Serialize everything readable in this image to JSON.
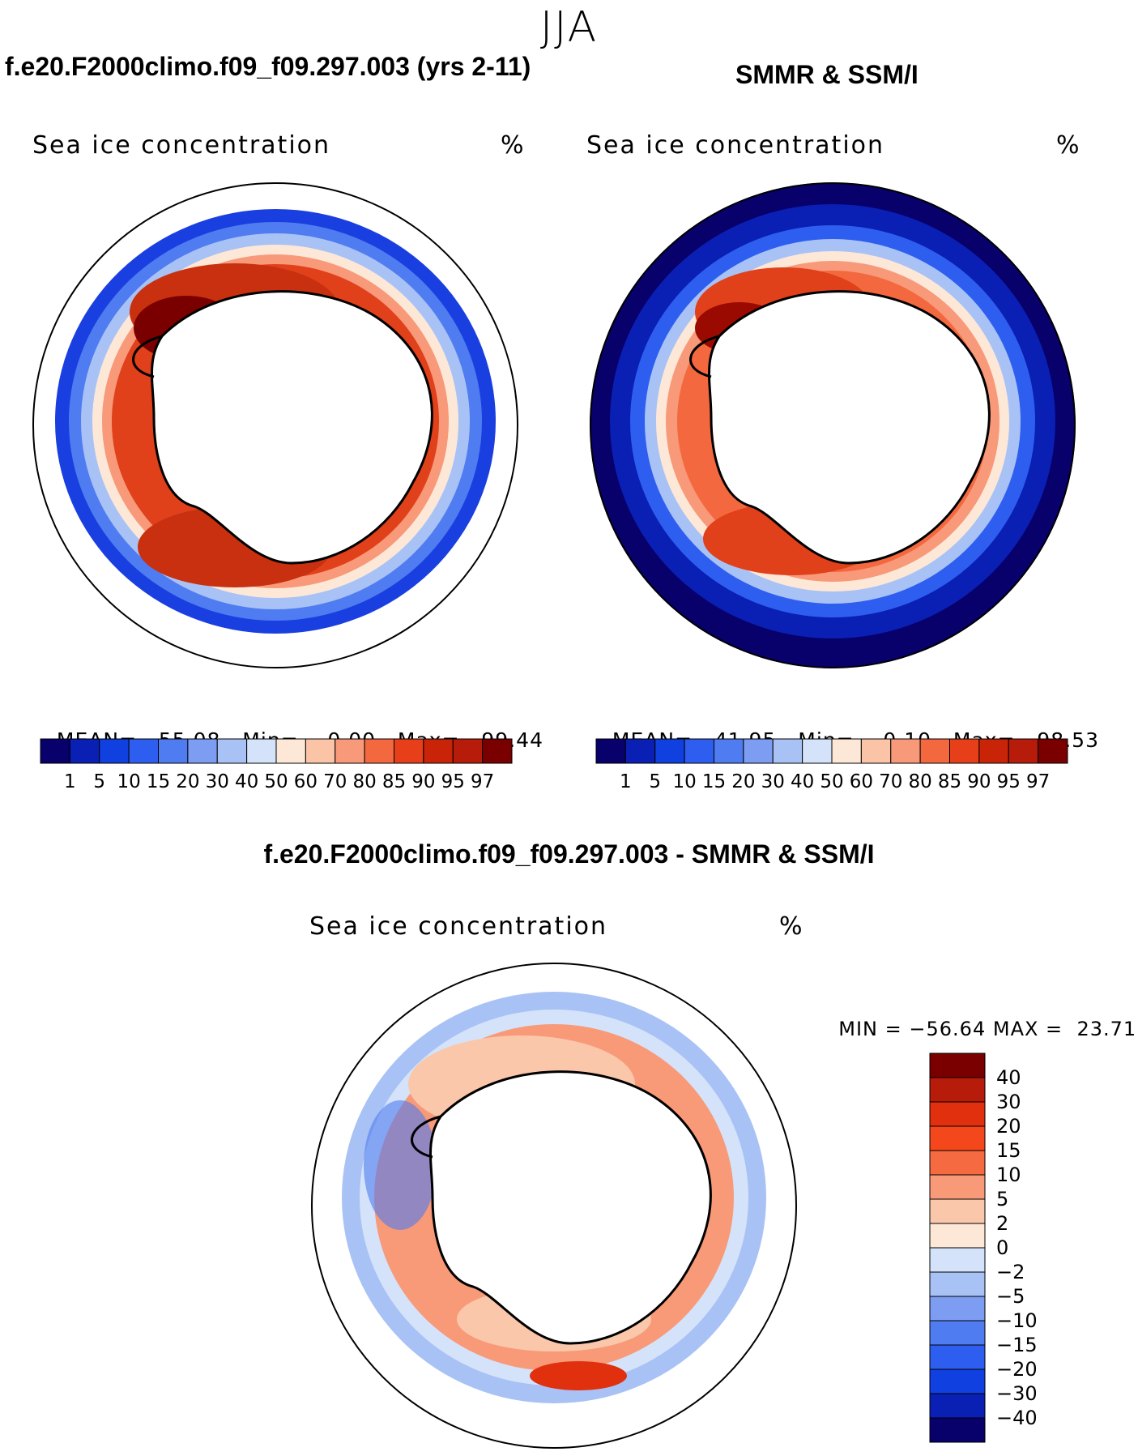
{
  "season": "JJA",
  "panels": {
    "model": {
      "title": "f.e20.F2000climo.f09_f09.297.003 (yrs 2-11)",
      "field": "Sea ice concentration",
      "unit": "%",
      "mean_label": "MEAN=",
      "mean": "55.08",
      "min_label": "Min=",
      "min": "0.00",
      "max_label": "Max=",
      "max": "99.44"
    },
    "obs": {
      "title": "SMMR & SSM/I",
      "field": "Sea ice concentration",
      "unit": "%",
      "mean_label": "MEAN=",
      "mean": "41.95",
      "min_label": "Min=",
      "min": "0.10",
      "max_label": "Max=",
      "max": "98.53"
    },
    "diff": {
      "title": "f.e20.F2000climo.f09_f09.297.003 - SMMR & SSM/I",
      "field": "Sea ice concentration",
      "unit": "%",
      "min_label": "MIN =",
      "min": "−56.64",
      "max_label": "MAX =",
      "max": "23.71"
    }
  },
  "colorbar_abs": {
    "ticks": [
      "1",
      "5",
      "10",
      "15",
      "20",
      "30",
      "40",
      "50",
      "60",
      "70",
      "80",
      "85",
      "90",
      "95",
      "97"
    ],
    "colors": [
      "#08006b",
      "#0a1fb4",
      "#1040e0",
      "#2e5ef0",
      "#4f7cf0",
      "#7c9df2",
      "#a9c2f5",
      "#d4e3fa",
      "#fde8d8",
      "#fbc4a6",
      "#f8997a",
      "#f4683f",
      "#e73f1a",
      "#c92408",
      "#b71c0a",
      "#7a0000"
    ]
  },
  "colorbar_diff": {
    "ticks": [
      "40",
      "30",
      "20",
      "15",
      "10",
      "5",
      "2",
      "0",
      "−2",
      "−5",
      "−10",
      "−15",
      "−20",
      "−30",
      "−40"
    ],
    "colors": [
      "#7a0000",
      "#b71c0a",
      "#e0300e",
      "#f4481c",
      "#f56a40",
      "#f89a78",
      "#fbc7ab",
      "#fde8d8",
      "#d4e3fa",
      "#a9c2f5",
      "#7c9df2",
      "#4f7cf0",
      "#2e5ef0",
      "#1040e0",
      "#0a1fb4",
      "#08006b"
    ]
  }
}
